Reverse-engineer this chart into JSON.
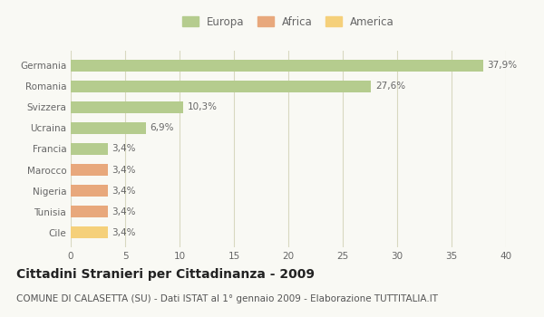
{
  "categories": [
    "Germania",
    "Romania",
    "Svizzera",
    "Ucraina",
    "Francia",
    "Marocco",
    "Nigeria",
    "Tunisia",
    "Cile"
  ],
  "values": [
    37.9,
    27.6,
    10.3,
    6.9,
    3.4,
    3.4,
    3.4,
    3.4,
    3.4
  ],
  "labels": [
    "37,9%",
    "27,6%",
    "10,3%",
    "6,9%",
    "3,4%",
    "3,4%",
    "3,4%",
    "3,4%",
    "3,4%"
  ],
  "colors": [
    "#b5cc8e",
    "#b5cc8e",
    "#b5cc8e",
    "#b5cc8e",
    "#b5cc8e",
    "#e8a87c",
    "#e8a87c",
    "#e8a87c",
    "#f5d07a"
  ],
  "legend_labels": [
    "Europa",
    "Africa",
    "America"
  ],
  "legend_colors": [
    "#b5cc8e",
    "#e8a87c",
    "#f5d07a"
  ],
  "xlim": [
    0,
    40
  ],
  "xticks": [
    0,
    5,
    10,
    15,
    20,
    25,
    30,
    35,
    40
  ],
  "title": "Cittadini Stranieri per Cittadinanza - 2009",
  "subtitle": "COMUNE DI CALASETTA (SU) - Dati ISTAT al 1° gennaio 2009 - Elaborazione TUTTITALIA.IT",
  "bg_color": "#f9f9f4",
  "grid_color": "#d8d8c0",
  "bar_height": 0.55,
  "title_fontsize": 10,
  "subtitle_fontsize": 7.5,
  "label_fontsize": 7.5,
  "tick_fontsize": 7.5,
  "legend_fontsize": 8.5
}
